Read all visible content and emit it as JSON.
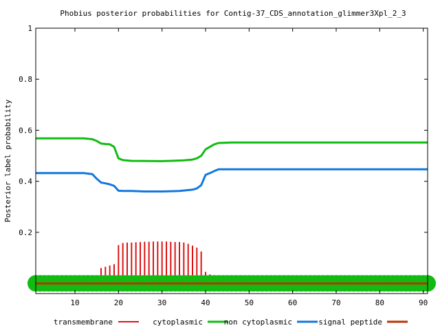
{
  "chart_data": {
    "type": "line",
    "title": "Phobius posterior probabilities for Contig-37_CDS_annotation_glimmer3Xpl_2_3",
    "xlabel": "",
    "ylabel": "Posterior label probability",
    "xlim": [
      1,
      91
    ],
    "ylim": [
      -0.04,
      1.0
    ],
    "x_ticks": [
      10,
      20,
      30,
      40,
      50,
      60,
      70,
      80,
      90
    ],
    "y_ticks": [
      0.2,
      0.4,
      0.6,
      0.8,
      1
    ],
    "y_tick_labels": [
      "0.2",
      "0.4",
      "0.6",
      "0.8",
      "1"
    ],
    "grid": false,
    "legend_position": "bottom",
    "series": [
      {
        "name": "transmembrane",
        "style": "impulses",
        "color": "#dd1111",
        "x": [
          11,
          12,
          13,
          14,
          15,
          16,
          17,
          18,
          19,
          20,
          21,
          22,
          23,
          24,
          25,
          26,
          27,
          28,
          29,
          30,
          31,
          32,
          33,
          34,
          35,
          36,
          37,
          38,
          39,
          40,
          41,
          42,
          43,
          44,
          45,
          46
        ],
        "values": [
          0.002,
          0.003,
          0.005,
          0.01,
          0.02,
          0.06,
          0.065,
          0.07,
          0.075,
          0.15,
          0.158,
          0.16,
          0.16,
          0.161,
          0.162,
          0.163,
          0.163,
          0.164,
          0.164,
          0.164,
          0.164,
          0.163,
          0.162,
          0.162,
          0.16,
          0.155,
          0.148,
          0.14,
          0.125,
          0.045,
          0.035,
          0.01,
          0.005,
          0.003,
          0.002,
          0.001
        ]
      },
      {
        "name": "cytoplasmic",
        "style": "impulses",
        "color": "#11bb11",
        "x": [
          1,
          2,
          3,
          4,
          5,
          6,
          7,
          8,
          9,
          10,
          11,
          12,
          13,
          14,
          15,
          16,
          17,
          18,
          19,
          20,
          21,
          22,
          23,
          24,
          25,
          26,
          27,
          28,
          29,
          30,
          31,
          32,
          33,
          34,
          35,
          36,
          37,
          38,
          39,
          40,
          41,
          42,
          43,
          44,
          45,
          46,
          47,
          48,
          49,
          50,
          51,
          52,
          53,
          54,
          55,
          56,
          57,
          58,
          59,
          60,
          61,
          62,
          63,
          64,
          65,
          66,
          67,
          68,
          69,
          70,
          71,
          72,
          73,
          74,
          75,
          76,
          77,
          78,
          79,
          80,
          81,
          82,
          83,
          84,
          85,
          86,
          87,
          88,
          89,
          90,
          91
        ],
        "values": [
          0,
          0,
          0,
          0,
          0,
          0,
          0,
          0,
          0,
          0,
          0,
          0,
          0,
          0,
          0,
          0,
          0,
          0,
          0,
          0,
          0,
          0,
          0,
          0,
          0,
          0,
          0,
          0,
          0,
          0,
          0,
          0,
          0,
          0,
          0,
          0,
          0,
          0,
          0,
          0,
          0,
          0,
          0,
          0,
          0,
          0,
          0,
          0,
          0,
          0,
          0,
          0,
          0,
          0,
          0,
          0,
          0,
          0,
          0,
          0,
          0,
          0,
          0,
          0,
          0,
          0,
          0,
          0,
          0,
          0,
          0,
          0,
          0,
          0,
          0,
          0,
          0,
          0,
          0,
          0,
          0,
          0,
          0,
          0,
          0,
          0,
          0,
          0,
          0,
          0,
          0
        ]
      },
      {
        "name": "non cytoplasmic",
        "style": "line",
        "color": "#11bb11",
        "x": [
          1,
          12,
          14,
          15,
          16,
          17,
          18,
          19,
          20,
          21,
          23,
          30,
          35,
          37,
          38,
          39,
          40,
          41,
          42,
          43,
          46,
          91
        ],
        "values": [
          0.568,
          0.568,
          0.565,
          0.558,
          0.548,
          0.546,
          0.545,
          0.535,
          0.49,
          0.483,
          0.48,
          0.479,
          0.482,
          0.485,
          0.49,
          0.5,
          0.525,
          0.535,
          0.545,
          0.55,
          0.552,
          0.552
        ]
      },
      {
        "name": "signal peptide",
        "style": "line",
        "color": "#1177dd",
        "x": [
          1,
          12,
          14,
          15,
          16,
          17,
          18,
          19,
          20,
          21,
          23,
          26,
          30,
          34,
          37,
          38,
          39,
          40,
          41,
          42,
          43,
          91
        ],
        "values": [
          0.432,
          0.432,
          0.428,
          0.41,
          0.395,
          0.392,
          0.388,
          0.382,
          0.363,
          0.362,
          0.362,
          0.36,
          0.36,
          0.362,
          0.367,
          0.372,
          0.385,
          0.425,
          0.432,
          0.44,
          0.447,
          0.447
        ]
      },
      {
        "name": "signal peptide",
        "style": "line",
        "color": "#bb3300",
        "x": [
          1,
          91
        ],
        "values": [
          0,
          0
        ]
      }
    ],
    "legend": [
      {
        "name": "transmembrane",
        "color": "#dd1111"
      },
      {
        "name": "cytoplasmic",
        "color": "#11bb11"
      },
      {
        "name": "non cytoplasmic",
        "color": "#1177dd"
      },
      {
        "name": "signal peptide",
        "color": "#bb3300"
      }
    ]
  }
}
